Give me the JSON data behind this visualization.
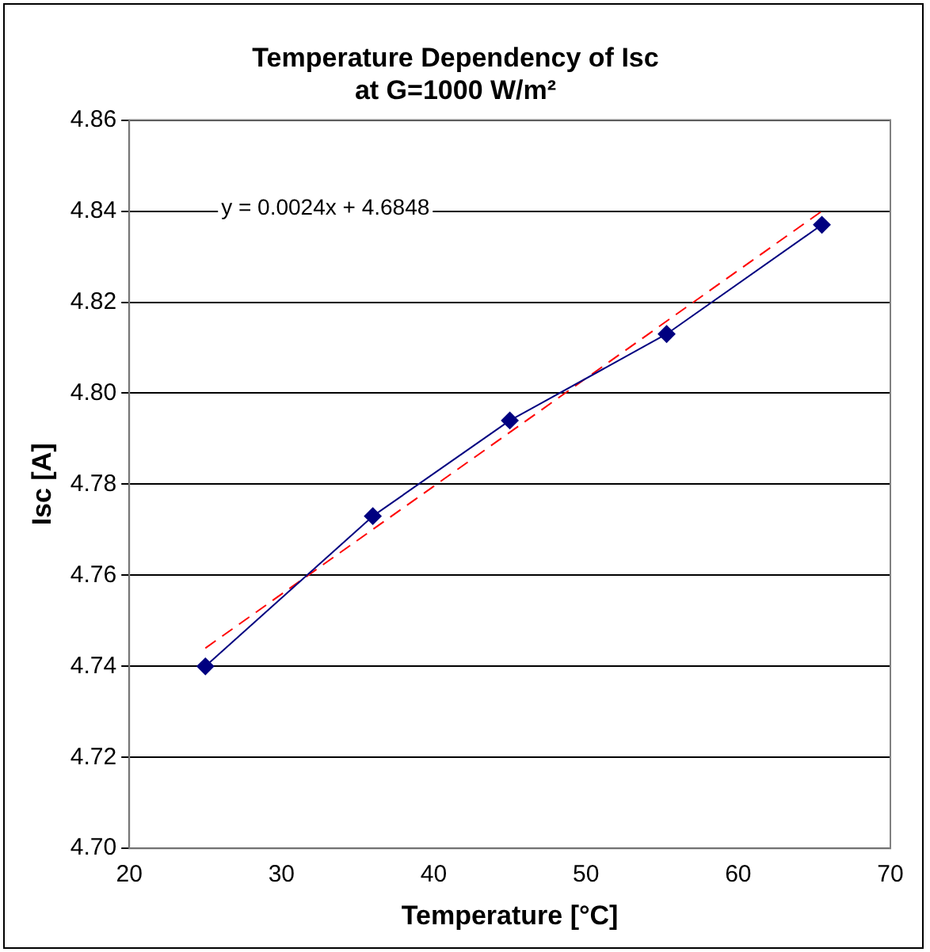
{
  "chart_data": {
    "type": "line",
    "title": "Temperature Dependency of Isc\nat G=1000 W/m²",
    "xlabel": "Temperature [°C]",
    "ylabel": "Isc [A]",
    "xlim": [
      20,
      70
    ],
    "xticks": [
      20,
      30,
      40,
      50,
      60,
      70
    ],
    "ylim": [
      4.7,
      4.86
    ],
    "yticks": [
      {
        "value": 4.7,
        "label": "4.70"
      },
      {
        "value": 4.72,
        "label": "4.72"
      },
      {
        "value": 4.74,
        "label": "4.74"
      },
      {
        "value": 4.76,
        "label": "4.76"
      },
      {
        "value": 4.78,
        "label": "4.78"
      },
      {
        "value": 4.8,
        "label": "4.80"
      },
      {
        "value": 4.82,
        "label": "4.82"
      },
      {
        "value": 4.84,
        "label": "4.84"
      },
      {
        "value": 4.86,
        "label": "4.86"
      }
    ],
    "grid": "y",
    "legend": false,
    "annotations": [
      "y = 0.0024x + 4.6848"
    ],
    "series": [
      {
        "color": "#000080",
        "x": [
          25,
          36,
          45,
          55.3,
          65.5
        ],
        "values": [
          4.74,
          4.773,
          4.794,
          4.813,
          4.837
        ],
        "marker": "diamond",
        "line_style": "solid"
      },
      {
        "type": "line",
        "color": "#ff0000",
        "x": [
          25,
          65.5
        ],
        "values": [
          4.744,
          4.84
        ],
        "marker": "none",
        "line_style": "dashed"
      }
    ]
  }
}
